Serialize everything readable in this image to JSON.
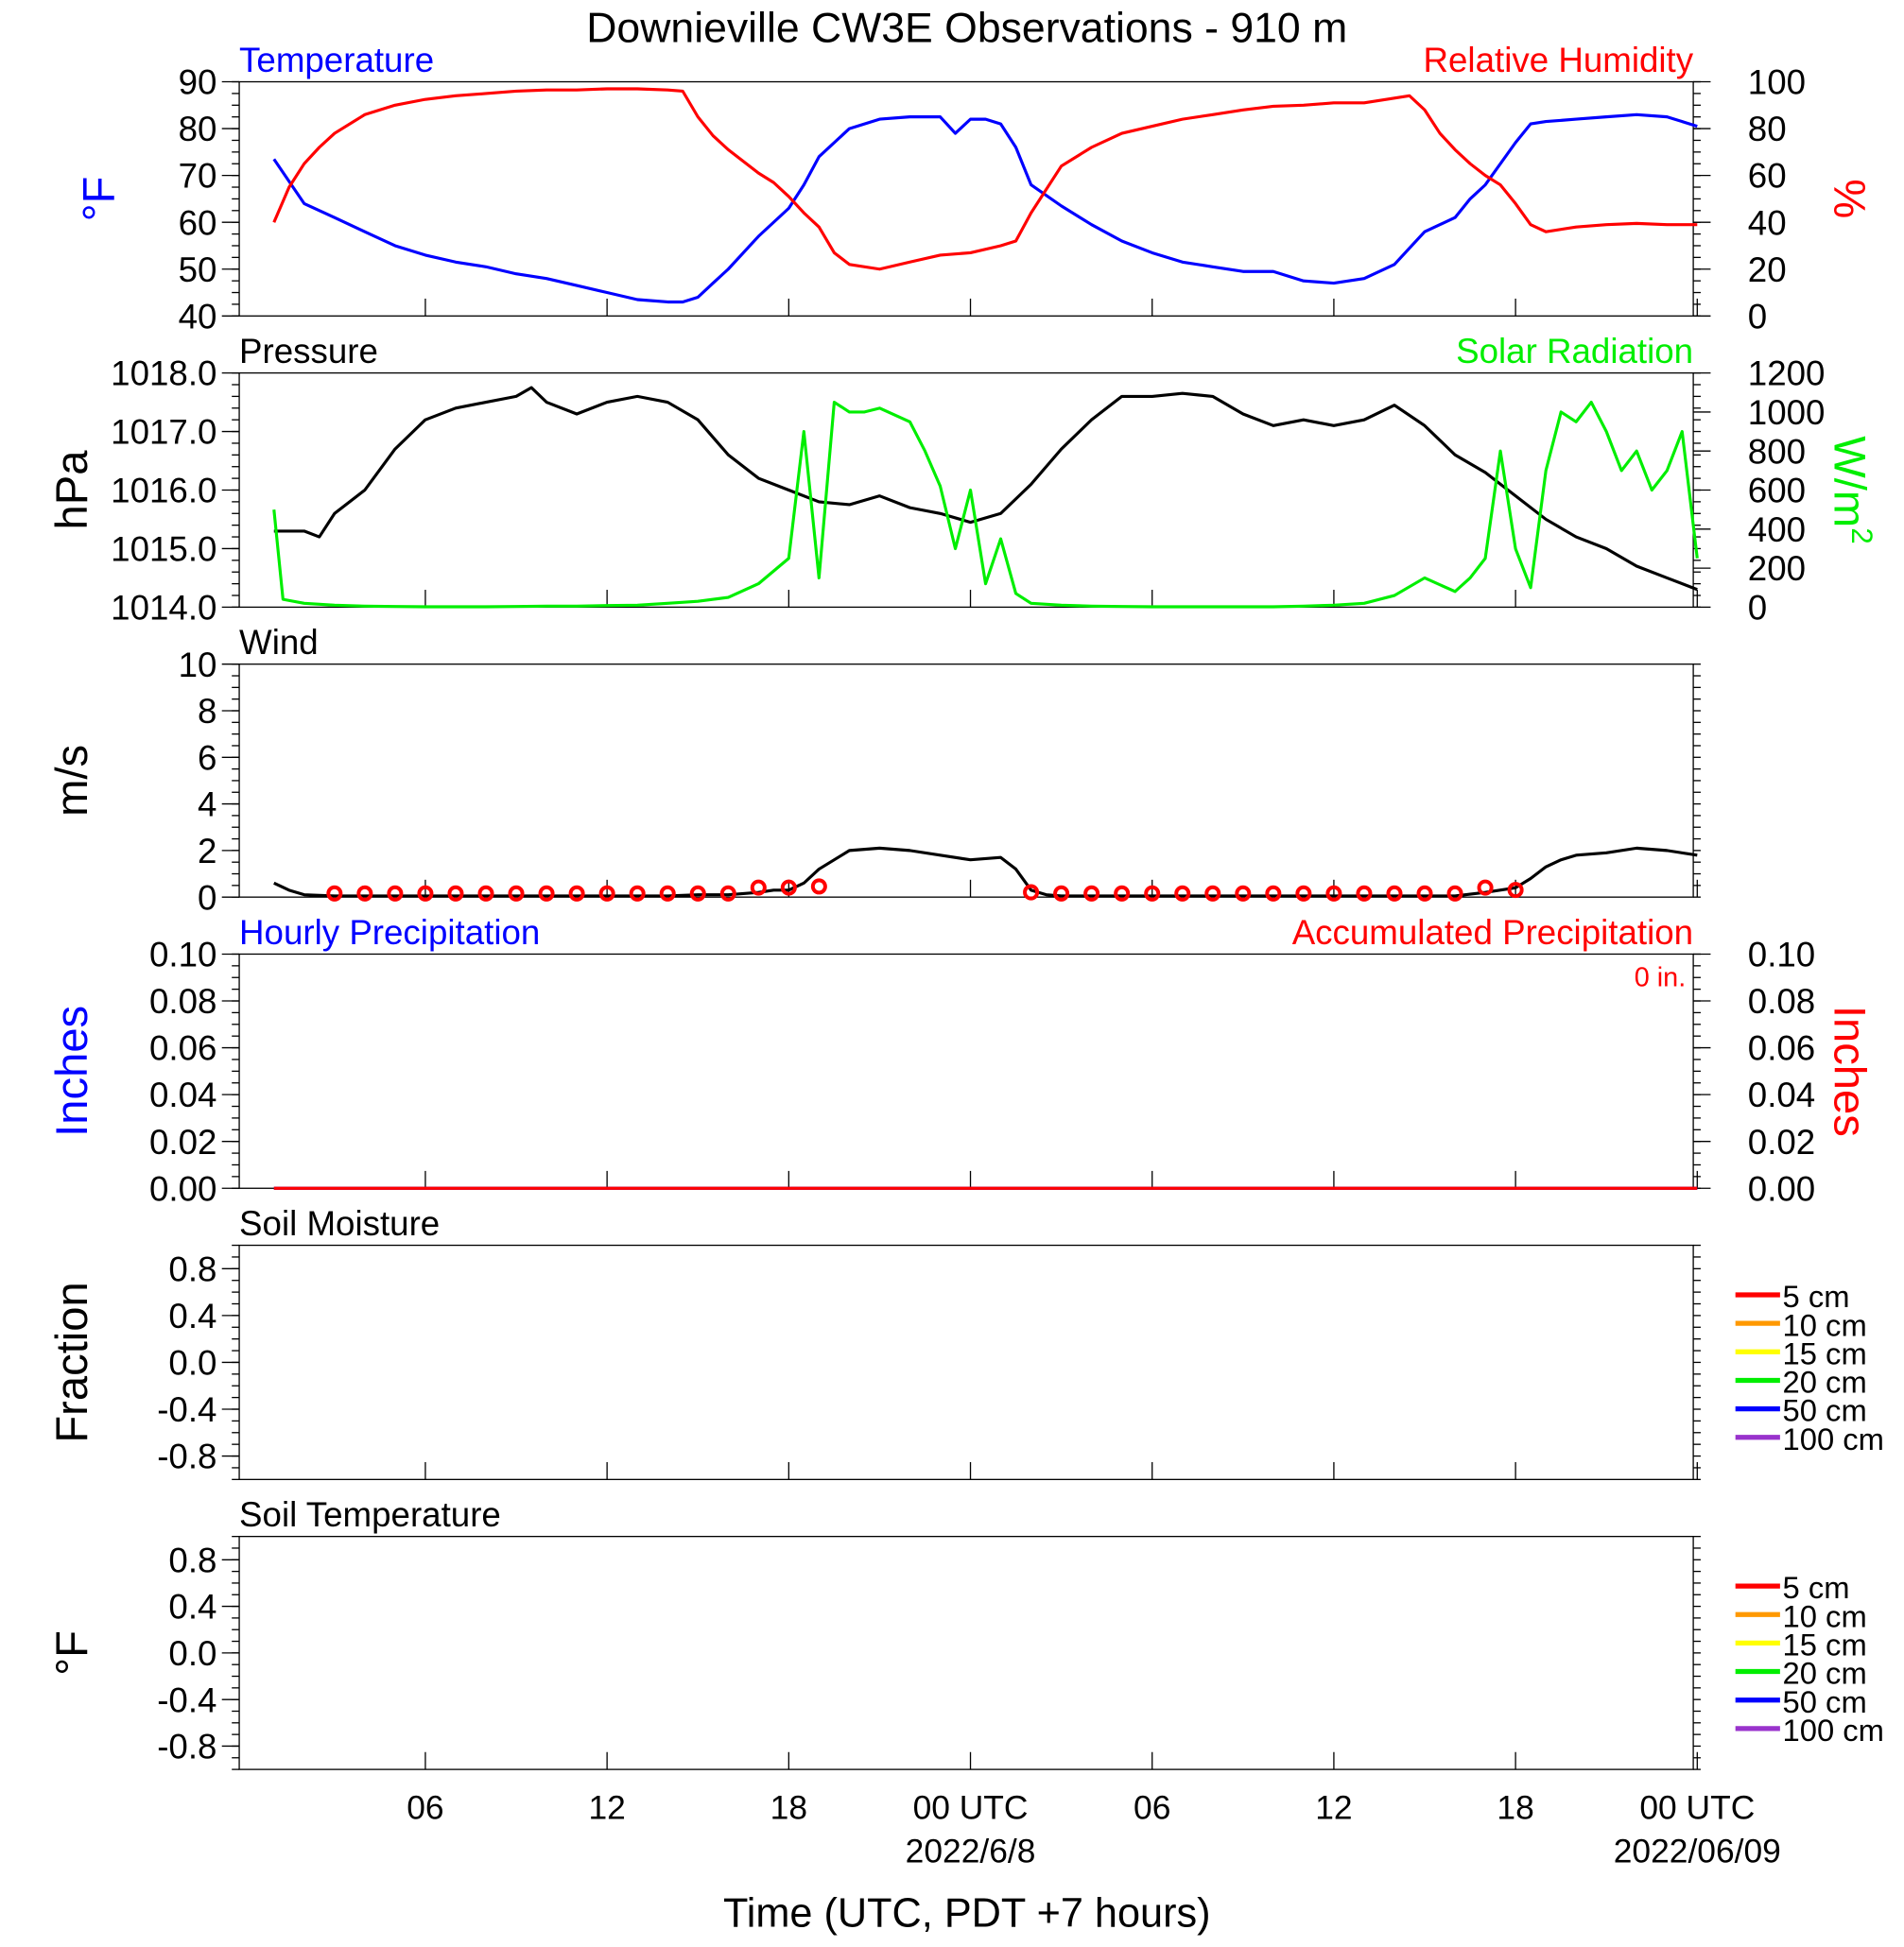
{
  "title": "Downieville CW3E Observations - 910 m",
  "colors": {
    "blue": "#0000ff",
    "red": "#ff0000",
    "green": "#00ee00",
    "black": "#000000",
    "orange": "#ff9900",
    "yellow": "#ffff00",
    "purple": "#9933cc"
  },
  "x_axis": {
    "label": "Time (UTC, PDT +7 hours)",
    "ticks": [
      {
        "hour": 6,
        "label": "06"
      },
      {
        "hour": 12,
        "label": "12"
      },
      {
        "hour": 18,
        "label": "18"
      },
      {
        "hour": 24,
        "label": "00 UTC",
        "sublabel": "2022/6/8"
      },
      {
        "hour": 30,
        "label": "06"
      },
      {
        "hour": 36,
        "label": "12"
      },
      {
        "hour": 42,
        "label": "18"
      },
      {
        "hour": 48,
        "label": "00 UTC",
        "sublabel": "2022/06/09"
      }
    ],
    "range_hours": [
      1,
      48
    ]
  },
  "chart_data": [
    {
      "type": "line",
      "id": "temp-rh",
      "left_title": "Temperature",
      "right_title": "Relative Humidity",
      "ylabel_left": "°F",
      "ylabel_right": "%",
      "ylim_left": [
        40,
        90
      ],
      "ylim_right": [
        0,
        100
      ],
      "yticks_left": [
        "90",
        "80",
        "70",
        "60",
        "50",
        "40"
      ],
      "yticks_right": [
        "100",
        "80",
        "60",
        "40",
        "20",
        "0"
      ],
      "series": [
        {
          "name": "Temperature",
          "axis": "left",
          "color": "#0000ff",
          "x": [
            1,
            2,
            3,
            4,
            5,
            6,
            7,
            8,
            9,
            10,
            11,
            12,
            13,
            14,
            14.5,
            15,
            15.5,
            16,
            17,
            18,
            18.5,
            19,
            20,
            21,
            22,
            23,
            23.5,
            24,
            24.5,
            25,
            25.5,
            26,
            27,
            28,
            29,
            30,
            31,
            32,
            33,
            34,
            35,
            36,
            37,
            38,
            39,
            40,
            40.5,
            41,
            42,
            42.5,
            43,
            44,
            45,
            46,
            47,
            48
          ],
          "y": [
            73.5,
            64,
            61,
            58,
            55,
            53,
            51.5,
            50.5,
            49,
            48,
            46.5,
            45,
            43.5,
            43,
            43,
            44,
            47,
            50,
            57,
            63,
            68,
            74,
            80,
            82,
            82.5,
            82.5,
            79,
            82,
            82,
            81,
            76,
            68,
            63.5,
            59.5,
            56,
            53.5,
            51.5,
            50.5,
            49.5,
            49.5,
            47.5,
            47,
            48,
            51,
            58,
            61,
            65,
            68,
            77,
            81,
            81.5,
            82,
            82.5,
            83,
            82.5,
            80.5
          ]
        },
        {
          "name": "Relative Humidity",
          "axis": "right",
          "color": "#ff0000",
          "x": [
            1,
            1.5,
            2,
            2.5,
            3,
            4,
            5,
            6,
            7,
            8,
            9,
            10,
            11,
            12,
            13,
            14,
            14.5,
            15,
            15.5,
            16,
            17,
            17.5,
            18,
            18.5,
            19,
            19.5,
            20,
            21,
            22,
            23,
            24,
            25,
            25.5,
            26,
            27,
            28,
            29,
            30,
            31,
            32,
            33,
            34,
            35,
            36,
            37,
            38,
            38.5,
            39,
            39.5,
            40,
            40.5,
            41,
            41.5,
            42,
            42.5,
            43,
            44,
            45,
            46,
            47,
            48
          ],
          "y": [
            40,
            55,
            65,
            72,
            78,
            86,
            90,
            92.5,
            94,
            95,
            96,
            96.5,
            96.5,
            97,
            97,
            96.5,
            96,
            85,
            77,
            71,
            61,
            57,
            51,
            44,
            38,
            27,
            22,
            20,
            23,
            26,
            27,
            30,
            32,
            44,
            64,
            72,
            78,
            81,
            84,
            86,
            88,
            89.5,
            90,
            91,
            91,
            93,
            94,
            88,
            78,
            71,
            65,
            60,
            56,
            48,
            39,
            36,
            38,
            39,
            39.5,
            39,
            39
          ]
        }
      ]
    },
    {
      "type": "line",
      "id": "pressure-solar",
      "left_title": "Pressure",
      "right_title": "Solar Radiation",
      "ylabel_left": "hPa",
      "ylabel_right": "W/m",
      "ylabel_right_sup": "2",
      "ylim_left": [
        1014.0,
        1018.0
      ],
      "ylim_right": [
        0,
        1200
      ],
      "yticks_left": [
        "1018.0",
        "1017.0",
        "1016.0",
        "1015.0",
        "1014.0"
      ],
      "yticks_right": [
        "1200",
        "1000",
        "800",
        "600",
        "400",
        "200",
        "0"
      ],
      "series": [
        {
          "name": "Pressure",
          "axis": "left",
          "color": "#000000",
          "x": [
            1,
            2,
            2.5,
            3,
            4,
            5,
            6,
            7,
            8,
            9,
            9.5,
            10,
            11,
            12,
            13,
            14,
            15,
            16,
            17,
            18,
            19,
            20,
            21,
            22,
            23,
            24,
            25,
            26,
            27,
            28,
            29,
            30,
            31,
            32,
            33,
            34,
            35,
            36,
            37,
            38,
            39,
            40,
            41,
            42,
            43,
            44,
            45,
            46,
            47,
            48
          ],
          "y": [
            1015.3,
            1015.3,
            1015.2,
            1015.6,
            1016.0,
            1016.7,
            1017.2,
            1017.4,
            1017.5,
            1017.6,
            1017.75,
            1017.5,
            1017.3,
            1017.5,
            1017.6,
            1017.5,
            1017.2,
            1016.6,
            1016.2,
            1016.0,
            1015.8,
            1015.75,
            1015.9,
            1015.7,
            1015.6,
            1015.45,
            1015.6,
            1016.1,
            1016.7,
            1017.2,
            1017.6,
            1017.6,
            1017.65,
            1017.6,
            1017.3,
            1017.1,
            1017.2,
            1017.1,
            1017.2,
            1017.45,
            1017.1,
            1016.6,
            1016.3,
            1015.9,
            1015.5,
            1015.2,
            1015.0,
            1014.7,
            1014.5,
            1014.3
          ]
        },
        {
          "name": "Solar Radiation",
          "axis": "right",
          "color": "#00ee00",
          "x": [
            1,
            1.3,
            2,
            3,
            4,
            5,
            6,
            7,
            8,
            9,
            10,
            11,
            12,
            13,
            14,
            15,
            16,
            17,
            18,
            18.5,
            19,
            19.5,
            20,
            20.5,
            21,
            22,
            22.5,
            23,
            23.5,
            24,
            24.5,
            25,
            25.5,
            26,
            27,
            28,
            29,
            30,
            31,
            32,
            33,
            34,
            35,
            36,
            37,
            38,
            39,
            40,
            40.5,
            41,
            41.5,
            42,
            42.5,
            43,
            43.5,
            44,
            44.5,
            45,
            45.5,
            46,
            46.5,
            47,
            47.5,
            48
          ],
          "y": [
            500,
            40,
            20,
            10,
            5,
            3,
            2,
            2,
            2,
            3,
            5,
            5,
            8,
            10,
            20,
            30,
            50,
            120,
            250,
            900,
            150,
            1050,
            1000,
            1000,
            1020,
            950,
            800,
            620,
            300,
            600,
            120,
            350,
            70,
            20,
            10,
            5,
            3,
            2,
            2,
            2,
            2,
            2,
            5,
            10,
            20,
            60,
            150,
            80,
            150,
            250,
            800,
            300,
            100,
            700,
            1000,
            950,
            1050,
            900,
            700,
            800,
            600,
            700,
            900,
            250
          ]
        }
      ]
    },
    {
      "type": "line",
      "id": "wind",
      "left_title": "Wind",
      "ylabel_left": "m/s",
      "ylim_left": [
        0,
        10
      ],
      "yticks_left": [
        "10",
        "8",
        "6",
        "4",
        "2",
        "0"
      ],
      "series": [
        {
          "name": "Wind",
          "axis": "left",
          "color": "#000000",
          "x": [
            1,
            1.5,
            2,
            3,
            4,
            5,
            6,
            7,
            8,
            9,
            10,
            11,
            12,
            13,
            14,
            15,
            16,
            17,
            17.5,
            18,
            18.5,
            19,
            19.5,
            20,
            21,
            22,
            23,
            24,
            25,
            25.5,
            26,
            26.5,
            27,
            28,
            29,
            30,
            31,
            32,
            33,
            34,
            35,
            36,
            37,
            38,
            39,
            40,
            41,
            42,
            42.5,
            43,
            43.5,
            44,
            45,
            46,
            47,
            48
          ],
          "y": [
            0.6,
            0.3,
            0.1,
            0.05,
            0.05,
            0.05,
            0.05,
            0.05,
            0.05,
            0.05,
            0.05,
            0.05,
            0.05,
            0.05,
            0.05,
            0.1,
            0.1,
            0.2,
            0.3,
            0.3,
            0.6,
            1.2,
            1.6,
            2.0,
            2.1,
            2.0,
            1.8,
            1.6,
            1.7,
            1.2,
            0.3,
            0.1,
            0.05,
            0.05,
            0.05,
            0.05,
            0.05,
            0.05,
            0.05,
            0.05,
            0.05,
            0.05,
            0.05,
            0.05,
            0.05,
            0.05,
            0.2,
            0.4,
            0.8,
            1.3,
            1.6,
            1.8,
            1.9,
            2.1,
            2.0,
            1.8
          ]
        }
      ],
      "station_circles_hours": [
        3,
        4,
        5,
        6,
        7,
        8,
        9,
        10,
        11,
        12,
        13,
        14,
        15,
        16,
        17,
        18,
        19,
        26,
        27,
        28,
        29,
        30,
        31,
        32,
        33,
        34,
        35,
        36,
        37,
        38,
        39,
        40,
        41,
        42
      ],
      "station_circle_values": [
        0.05,
        0.05,
        0.05,
        0.05,
        0.05,
        0.05,
        0.05,
        0.05,
        0.05,
        0.05,
        0.05,
        0.05,
        0.05,
        0.05,
        0.3,
        0.3,
        0.35,
        0.1,
        0.05,
        0.05,
        0.05,
        0.05,
        0.05,
        0.05,
        0.05,
        0.05,
        0.05,
        0.05,
        0.05,
        0.05,
        0.05,
        0.05,
        0.3,
        0.2
      ]
    },
    {
      "type": "line",
      "id": "precip",
      "left_title": "Hourly Precipitation",
      "right_title": "Accumulated Precipitation",
      "annotation": "0 in.",
      "ylabel_left": "Inches",
      "ylabel_right": "Inches",
      "ylim_left": [
        0,
        0.1
      ],
      "ylim_right": [
        0,
        0.1
      ],
      "yticks_left": [
        "0.10",
        "0.08",
        "0.06",
        "0.04",
        "0.02",
        "0.00"
      ],
      "yticks_right": [
        "0.10",
        "0.08",
        "0.06",
        "0.04",
        "0.02",
        "0.00"
      ],
      "series": [
        {
          "name": "Hourly Precipitation",
          "axis": "left",
          "color": "#0000ff",
          "x": [
            1,
            48
          ],
          "y": [
            0,
            0
          ]
        },
        {
          "name": "Accumulated Precipitation",
          "axis": "right",
          "color": "#ff0000",
          "x": [
            1,
            48
          ],
          "y": [
            0,
            0
          ]
        }
      ]
    },
    {
      "type": "line",
      "id": "soil-moisture",
      "left_title": "Soil Moisture",
      "ylabel_left": "Fraction",
      "ylim_left": [
        -1,
        1
      ],
      "yticks_left": [
        "0.8",
        "0.4",
        "0.0",
        "-0.4",
        "-0.8"
      ],
      "legend": [
        {
          "label": "5 cm",
          "color": "#ff0000"
        },
        {
          "label": "10 cm",
          "color": "#ff9900"
        },
        {
          "label": "15 cm",
          "color": "#ffff00"
        },
        {
          "label": "20 cm",
          "color": "#00ee00"
        },
        {
          "label": "50 cm",
          "color": "#0000ff"
        },
        {
          "label": "100 cm",
          "color": "#9933cc"
        }
      ],
      "series": []
    },
    {
      "type": "line",
      "id": "soil-temperature",
      "left_title": "Soil Temperature",
      "ylabel_left": "°F",
      "ylim_left": [
        -1,
        1
      ],
      "yticks_left": [
        "0.8",
        "0.4",
        "0.0",
        "-0.4",
        "-0.8"
      ],
      "legend": [
        {
          "label": "5 cm",
          "color": "#ff0000"
        },
        {
          "label": "10 cm",
          "color": "#ff9900"
        },
        {
          "label": "15 cm",
          "color": "#ffff00"
        },
        {
          "label": "20 cm",
          "color": "#00ee00"
        },
        {
          "label": "50 cm",
          "color": "#0000ff"
        },
        {
          "label": "100 cm",
          "color": "#9933cc"
        }
      ],
      "series": []
    }
  ]
}
